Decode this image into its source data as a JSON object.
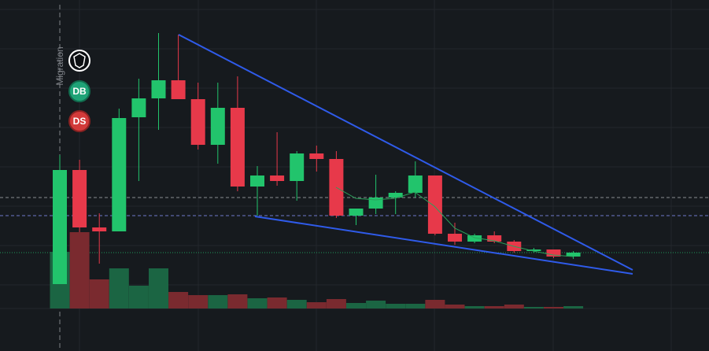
{
  "chart_data": {
    "type": "candlestick",
    "ylim": [
      0,
      446
    ],
    "volume_ylim": [
      0,
      392
    ],
    "up_color": "#22c46c",
    "down_color": "#e7394a",
    "volume_up_color": "#1b6543",
    "volume_down_color": "#7a2a2f",
    "open": [
      85,
      230,
      157,
      152,
      297,
      321,
      344,
      320,
      262,
      309,
      209,
      223,
      216,
      251,
      244,
      172,
      181,
      195,
      201,
      223,
      149,
      139,
      147,
      139,
      127,
      129,
      120
    ],
    "high": [
      249,
      243,
      175,
      308,
      346,
      404,
      402,
      341,
      341,
      349,
      235,
      278,
      254,
      261,
      254,
      181,
      224,
      203,
      241,
      223,
      163,
      149,
      152,
      141,
      131,
      129,
      127
    ],
    "low": [
      85,
      151,
      111,
      152,
      216,
      281,
      320,
      256,
      238,
      203,
      172,
      210,
      191,
      228,
      169,
      160,
      174,
      174,
      195,
      147,
      135,
      137,
      137,
      125,
      125,
      118,
      117
    ],
    "close": [
      230,
      157,
      152,
      296,
      321,
      344,
      320,
      262,
      309,
      209,
      223,
      216,
      251,
      244,
      172,
      181,
      195,
      201,
      223,
      149,
      139,
      147,
      139,
      127,
      129,
      120,
      125
    ],
    "volume": [
      72,
      97,
      37,
      51,
      29,
      51,
      21,
      17,
      17,
      18,
      13,
      14,
      11,
      8,
      12,
      7,
      10,
      6,
      6,
      11,
      5,
      3,
      3,
      5,
      2,
      2,
      3
    ],
    "markers": {
      "event": "Migration",
      "buy": "DB",
      "sell": "DS"
    }
  }
}
